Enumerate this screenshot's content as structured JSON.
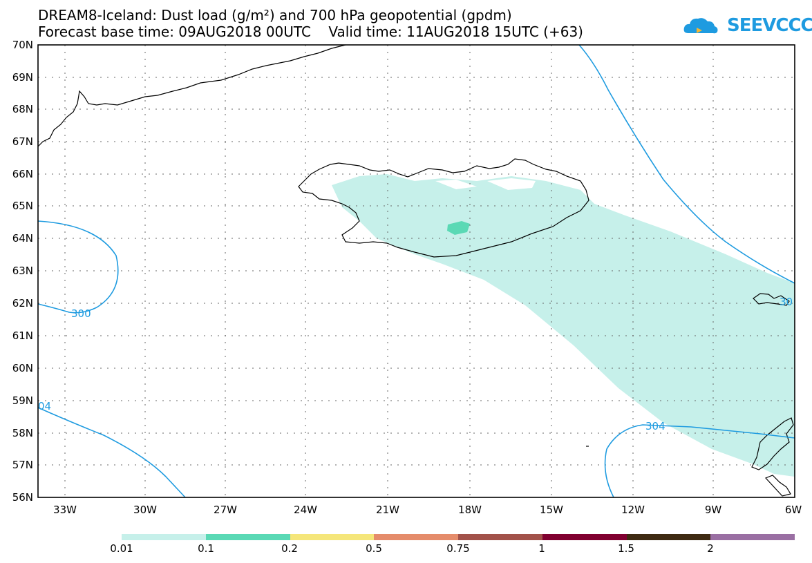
{
  "header": {
    "line1": "DREAM8-Iceland: Dust load (g/m²) and 700 hPa geopotential (gpdm)",
    "line2": "Forecast base time: 09AUG2018 00UTC    Valid time: 11AUG2018 15UTC (+63)"
  },
  "logo": {
    "text": "SEEVCCC"
  },
  "map": {
    "lat_labels": [
      "70N",
      "69N",
      "68N",
      "67N",
      "66N",
      "65N",
      "64N",
      "63N",
      "62N",
      "61N",
      "60N",
      "59N",
      "58N",
      "57N",
      "56N"
    ],
    "lon_labels": [
      "33W",
      "30W",
      "27W",
      "24W",
      "21W",
      "18W",
      "15W",
      "12W",
      "9W",
      "6W"
    ],
    "contour_labels": {
      "c300": "300",
      "c304_left": "04",
      "c304_bottom": "304",
      "c304_right": "30"
    },
    "colors": {
      "coast": "#000000",
      "contour": "#1e9be0",
      "dust_light": "#c6f0ea",
      "dust_mid": "#5ad9b5"
    }
  },
  "colorbar": {
    "labels": [
      "0.01",
      "0.1",
      "0.2",
      "0.5",
      "0.75",
      "1",
      "1.5",
      "2"
    ],
    "colors": [
      "#c6f0ea",
      "#5ad9b5",
      "#f5e67a",
      "#e58c6b",
      "#a2524a",
      "#800030",
      "#3e2a12",
      "#9a6fa3"
    ]
  }
}
